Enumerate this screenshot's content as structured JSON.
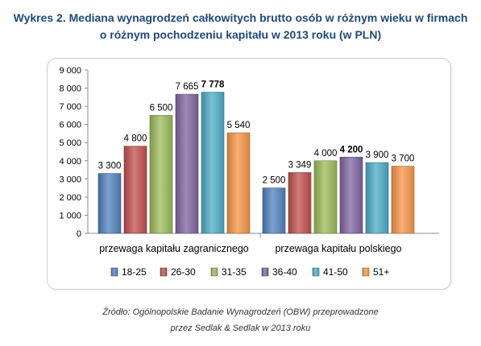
{
  "title": {
    "line1": "Wykres 2. Mediana wynagrodzeń całkowitych brutto osób w różnym wieku w firmach",
    "line2": "o różnym pochodzeniu kapitału w 2013 roku (w PLN)"
  },
  "source": {
    "line1": "Źródło: Ogólnopolskie Badanie Wynagrodzeń (OBW) przeprowadzone",
    "line2": "przez Sedlak & Sedlak w 2013 roku"
  },
  "chart_data": {
    "type": "bar",
    "categories": [
      "przewaga kapitału zagranicznego",
      "przewaga kapitału polskiego"
    ],
    "series": [
      {
        "name": "18-25",
        "color": "#4F81BD",
        "values": [
          3300,
          2500
        ],
        "labels": [
          "3 300",
          "2 500"
        ],
        "bold": [
          false,
          false
        ]
      },
      {
        "name": "26-30",
        "color": "#C0504D",
        "values": [
          4800,
          3349
        ],
        "labels": [
          "4 800",
          "3 349"
        ],
        "bold": [
          false,
          false
        ]
      },
      {
        "name": "31-35",
        "color": "#9BBB59",
        "values": [
          6500,
          4000
        ],
        "labels": [
          "6 500",
          "4 000"
        ],
        "bold": [
          false,
          false
        ]
      },
      {
        "name": "36-40",
        "color": "#8064A2",
        "values": [
          7665,
          4200
        ],
        "labels": [
          "7 665",
          "4 200"
        ],
        "bold": [
          false,
          true
        ]
      },
      {
        "name": "41-50",
        "color": "#4BACC6",
        "values": [
          7778,
          3900
        ],
        "labels": [
          "7 778",
          "3 900"
        ],
        "bold": [
          true,
          false
        ]
      },
      {
        "name": "51+",
        "color": "#F79646",
        "values": [
          5540,
          3700
        ],
        "labels": [
          "5 540",
          "3 700"
        ],
        "bold": [
          false,
          false
        ]
      }
    ],
    "ylim": [
      0,
      9000
    ],
    "yticks": [
      0,
      1000,
      2000,
      3000,
      4000,
      5000,
      6000,
      7000,
      8000,
      9000
    ],
    "ytick_labels": [
      "0",
      "1 000",
      "2 000",
      "3 000",
      "4 000",
      "5 000",
      "6 000",
      "7 000",
      "8 000",
      "9 000"
    ],
    "grid": false,
    "legend": "bottom"
  }
}
